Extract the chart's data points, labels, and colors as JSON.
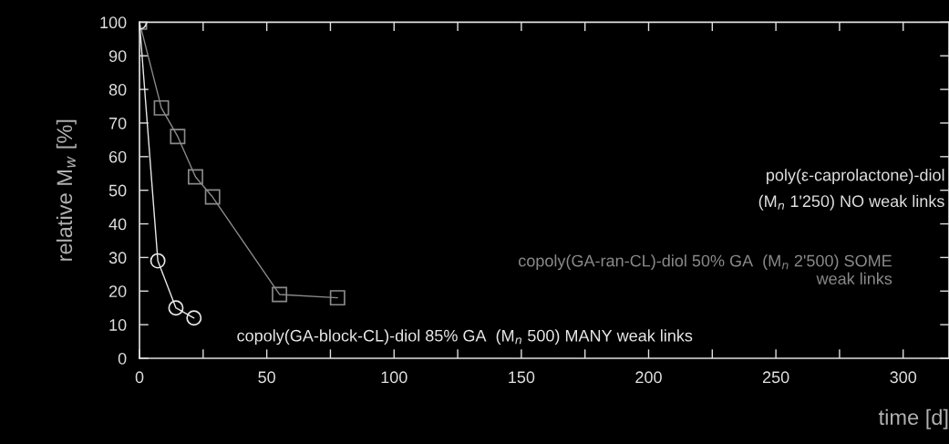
{
  "chart_data": {
    "type": "line",
    "xlabel": "time [d]",
    "ylabel": "relative M$_{w}$ [%]",
    "xlim": [
      0,
      318
    ],
    "ylim": [
      0,
      100
    ],
    "xticks": [
      0,
      {
        "value": 25,
        "label": null
      },
      50,
      {
        "value": 75,
        "label": null
      },
      100,
      {
        "value": 125,
        "label": null
      },
      150,
      {
        "value": 175,
        "label": null
      },
      200,
      {
        "value": 225,
        "label": null
      },
      250,
      {
        "value": 275,
        "label": null
      },
      300
    ],
    "yticks": [
      0,
      10,
      20,
      30,
      40,
      50,
      60,
      70,
      80,
      90,
      100
    ],
    "legend": "right",
    "annotations": [
      "poly(ε-caprolactone)-diol\n(M$_{n}$ 1'250) NO weak links"
    ],
    "series": [
      {
        "name": "copoly(GA-ran-CL)-diol 50% GA  (M$_{n}$ 2'500) SOME\nweak links",
        "color": "#8a8a8a",
        "marker": "square",
        "x": [
          0,
          8.6,
          15,
          22,
          28.7,
          55,
          77.8
        ],
        "values": [
          100,
          74.5,
          66,
          54,
          48,
          19,
          18
        ]
      },
      {
        "name": "copoly(GA-block-CL)-diol 85% GA  (M$_{n}$ 500) MANY weak links",
        "color": "#e8e8e8",
        "marker": "circle",
        "x": [
          0,
          7.2,
          14.3,
          21.4
        ],
        "values": [
          100,
          29,
          15,
          12
        ]
      }
    ]
  }
}
